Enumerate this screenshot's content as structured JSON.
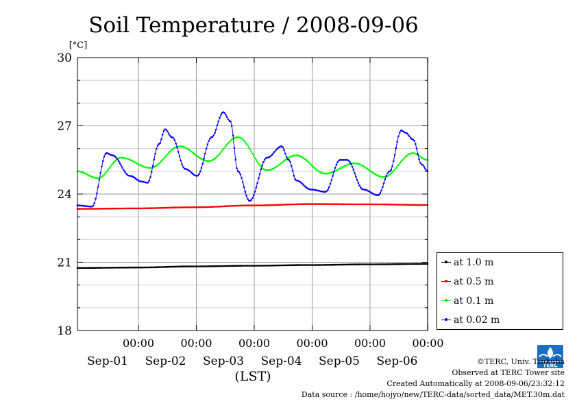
{
  "chart_data": {
    "type": "line",
    "title": "Soil Temperature / 2008-09-06",
    "ylabel": "[°C]",
    "xlabel": "(LST)",
    "ylim": [
      18,
      30
    ],
    "xlim": [
      0,
      6
    ],
    "yticks": [
      18,
      21,
      24,
      27,
      30
    ],
    "grid": true,
    "legend_position": "right",
    "xticks": [
      {
        "x": 1,
        "label": "00:00",
        "day": "Sep-01"
      },
      {
        "x": 2,
        "label": "00:00",
        "day": "Sep-02"
      },
      {
        "x": 3,
        "label": "00:00",
        "day": "Sep-03"
      },
      {
        "x": 4,
        "label": "00:00",
        "day": "Sep-04"
      },
      {
        "x": 5,
        "label": "00:00",
        "day": "Sep-05"
      },
      {
        "x": 6,
        "label": "00:00",
        "day": "Sep-06"
      }
    ],
    "x_unit_note": "",
    "series": [
      {
        "name": "at 1.0 m",
        "color": "#000000",
        "x": [
          0,
          1,
          2,
          3,
          4,
          5,
          6
        ],
        "y": [
          20.75,
          20.77,
          20.82,
          20.85,
          20.88,
          20.91,
          20.93
        ]
      },
      {
        "name": "at 0.5 m",
        "color": "#ff0000",
        "x": [
          0,
          1,
          2,
          3,
          4,
          5,
          6
        ],
        "y": [
          23.35,
          23.37,
          23.42,
          23.5,
          23.56,
          23.55,
          23.52
        ]
      },
      {
        "name": "at 0.1 m",
        "color": "#00ff00",
        "x": [
          0,
          0.35,
          0.75,
          1.25,
          1.75,
          2.25,
          2.75,
          3.25,
          3.75,
          4.25,
          4.75,
          5.25,
          5.75,
          6.0
        ],
        "y": [
          25.0,
          24.7,
          25.6,
          25.15,
          26.1,
          25.45,
          26.5,
          25.05,
          25.7,
          24.9,
          25.35,
          24.75,
          25.8,
          25.5
        ]
      },
      {
        "name": "at 0.02 m",
        "color": "#0000ff",
        "x": [
          0,
          0.25,
          0.5,
          0.6,
          0.9,
          1.1,
          1.2,
          1.4,
          1.5,
          1.62,
          1.85,
          2.05,
          2.3,
          2.5,
          2.62,
          2.75,
          2.95,
          3.25,
          3.5,
          3.62,
          3.75,
          4.0,
          4.25,
          4.5,
          4.62,
          4.9,
          5.15,
          5.35,
          5.55,
          5.62,
          5.75,
          5.9,
          6.0
        ],
        "y": [
          23.5,
          23.45,
          25.8,
          25.7,
          24.8,
          24.55,
          24.5,
          26.2,
          26.85,
          26.5,
          25.1,
          24.8,
          26.5,
          27.6,
          27.2,
          25.0,
          23.7,
          25.6,
          26.1,
          25.5,
          24.6,
          24.2,
          24.1,
          25.5,
          25.5,
          24.2,
          23.95,
          25.0,
          26.8,
          26.7,
          26.4,
          25.3,
          25.0
        ]
      }
    ]
  },
  "legend": {
    "items": [
      {
        "label": "at 1.0 m",
        "color": "#000000"
      },
      {
        "label": "at 0.5 m",
        "color": "#ff0000"
      },
      {
        "label": "at 0.1 m",
        "color": "#00ff00"
      },
      {
        "label": "at 0.02 m",
        "color": "#0000ff"
      }
    ]
  },
  "credits": {
    "copyright": "©TERC, Univ. Tsukuba",
    "observed": "Observed at TERC Tower site",
    "created": "Created Automatically at 2008-09-06/23:32:12",
    "source": "Data source : /home/hojyo/new/TERC-data/sorted_data/MET.30m.dat"
  },
  "logo": {
    "text": "TERC",
    "color": "#1a6fc4"
  }
}
